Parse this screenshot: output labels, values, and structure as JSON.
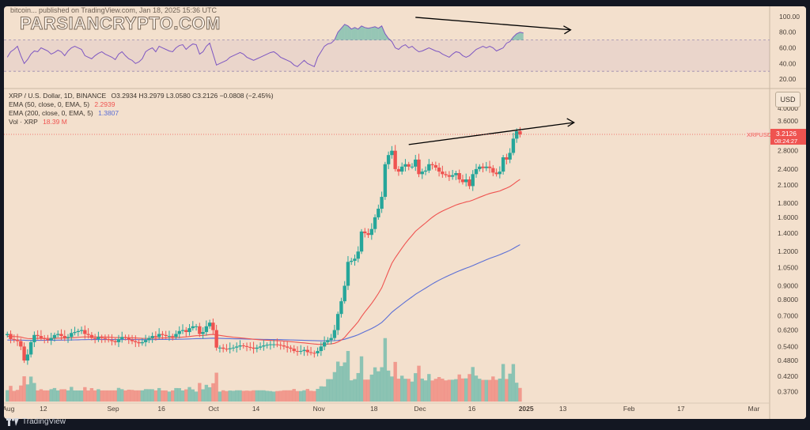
{
  "header": {
    "source_line": "bitcoin... published on TradingView.com, Jan 18, 2025 15:36 UTC",
    "watermark": "PARSIANCRYPTO.COM"
  },
  "legend": {
    "symbol_line": "XRP / U.S. Dollar, 1D, BINANCE",
    "ohlc": "O3.2934 H3.2979 L3.0580 C3.2126 −0.0808 (−2.45%)",
    "ema50_label": "EMA (50, close, 0, EMA, 5)",
    "ema50_value": "2.2939",
    "ema200_label": "EMA (200, close, 0, EMA, 5)",
    "ema200_value": "1.3807",
    "vol_label": "Vol · XRP",
    "vol_value": "18.39 M"
  },
  "price_tag": {
    "symbol": "XRPUSD",
    "value": "3.2126",
    "countdown": "08:24:27"
  },
  "currency_button": "USD",
  "footer": "TradingView",
  "colors": {
    "bg": "#f3e0cd",
    "up": "#26a69a",
    "down": "#ef5350",
    "ema50": "#ef5350",
    "ema200": "#5b6fd6",
    "rsi": "#7e57c2"
  },
  "chart_data": {
    "type": "candlestick",
    "title": "XRP / U.S. Dollar, 1D, BINANCE",
    "price_scale": "log",
    "price_ticks": [
      "4.0000",
      "3.6000",
      "3.2000",
      "2.8000",
      "2.4000",
      "2.1000",
      "1.8000",
      "1.6000",
      "1.4000",
      "1.2000",
      "1.0500",
      "0.9000",
      "0.8000",
      "0.7000",
      "0.6200",
      "0.5400",
      "0.4800",
      "0.4200",
      "0.3700"
    ],
    "price_tick_values": [
      4.0,
      3.6,
      3.2,
      2.8,
      2.4,
      2.1,
      1.8,
      1.6,
      1.4,
      1.2,
      1.05,
      0.9,
      0.8,
      0.7,
      0.62,
      0.54,
      0.48,
      0.42,
      0.37
    ],
    "price_range": [
      0.34,
      4.6
    ],
    "x_ticks": [
      "Aug",
      "12",
      "Sep",
      "16",
      "Oct",
      "14",
      "Nov",
      "18",
      "Dec",
      "16",
      "2025",
      "13",
      "Feb",
      "17",
      "Mar"
    ],
    "x_tick_days": [
      0,
      11,
      31,
      46,
      61,
      74,
      92,
      109,
      122,
      138,
      153,
      165,
      184,
      200,
      221
    ],
    "x_range_days": [
      -1,
      226
    ],
    "candles_start": "Aug 1, 2024",
    "closes": [
      0.6,
      0.575,
      0.572,
      0.565,
      0.54,
      0.48,
      0.505,
      0.56,
      0.595,
      0.59,
      0.58,
      0.575,
      0.57,
      0.58,
      0.595,
      0.6,
      0.59,
      0.58,
      0.585,
      0.605,
      0.61,
      0.615,
      0.62,
      0.6,
      0.595,
      0.58,
      0.575,
      0.585,
      0.58,
      0.575,
      0.57,
      0.565,
      0.56,
      0.575,
      0.585,
      0.58,
      0.572,
      0.565,
      0.56,
      0.555,
      0.56,
      0.57,
      0.58,
      0.59,
      0.585,
      0.6,
      0.595,
      0.59,
      0.59,
      0.585,
      0.6,
      0.615,
      0.62,
      0.61,
      0.63,
      0.64,
      0.64,
      0.6,
      0.61,
      0.64,
      0.66,
      0.62,
      0.535,
      0.535,
      0.53,
      0.528,
      0.532,
      0.535,
      0.54,
      0.545,
      0.542,
      0.538,
      0.535,
      0.53,
      0.535,
      0.54,
      0.545,
      0.548,
      0.55,
      0.55,
      0.548,
      0.545,
      0.54,
      0.535,
      0.53,
      0.52,
      0.518,
      0.52,
      0.525,
      0.515,
      0.512,
      0.51,
      0.52,
      0.54,
      0.56,
      0.57,
      0.58,
      0.62,
      0.71,
      0.79,
      0.9,
      1.1,
      1.11,
      1.13,
      1.2,
      1.42,
      1.4,
      1.38,
      1.45,
      1.6,
      1.72,
      1.9,
      2.5,
      2.7,
      2.8,
      2.4,
      2.35,
      2.45,
      2.5,
      2.45,
      2.45,
      2.6,
      2.3,
      2.35,
      2.37,
      2.5,
      2.48,
      2.43,
      2.35,
      2.3,
      2.28,
      2.25,
      2.28,
      2.32,
      2.2,
      2.15,
      2.2,
      2.08,
      2.3,
      2.4,
      2.45,
      2.42,
      2.45,
      2.42,
      2.33,
      2.3,
      2.35,
      2.65,
      2.6,
      2.75,
      3.1,
      3.3,
      3.2126
    ],
    "ema50_value": 2.2939,
    "ema200_value": 1.3807,
    "volume_label": "Vol · XRP",
    "rsi": {
      "ticks": [
        "100.00",
        "80.00",
        "60.00",
        "40.00",
        "20.00"
      ],
      "tick_values": [
        100,
        80,
        60,
        40,
        20
      ],
      "upper_band": 70,
      "lower_band": 30,
      "values": [
        48,
        55,
        58,
        62,
        50,
        40,
        45,
        52,
        56,
        55,
        60,
        58,
        56,
        52,
        54,
        57,
        55,
        50,
        56,
        60,
        62,
        60,
        58,
        50,
        48,
        46,
        50,
        53,
        55,
        52,
        50,
        48,
        45,
        52,
        55,
        50,
        46,
        44,
        40,
        42,
        46,
        55,
        58,
        60,
        55,
        62,
        60,
        58,
        56,
        55,
        60,
        63,
        64,
        58,
        62,
        65,
        64,
        52,
        55,
        62,
        66,
        52,
        38,
        40,
        42,
        44,
        48,
        50,
        52,
        54,
        52,
        48,
        46,
        44,
        46,
        48,
        50,
        52,
        54,
        55,
        52,
        48,
        46,
        44,
        42,
        38,
        36,
        40,
        44,
        40,
        38,
        36,
        48,
        55,
        62,
        65,
        66,
        70,
        80,
        85,
        90,
        88,
        84,
        86,
        84,
        88,
        86,
        85,
        86,
        87,
        85,
        88,
        78,
        72,
        68,
        60,
        58,
        62,
        64,
        60,
        62,
        58,
        55,
        56,
        58,
        60,
        58,
        56,
        55,
        52,
        50,
        48,
        52,
        55,
        54,
        50,
        48,
        50,
        54,
        58,
        60,
        62,
        60,
        62,
        60,
        56,
        58,
        60,
        66,
        68,
        74,
        78,
        80,
        79
      ]
    },
    "annotations": [
      "descending RSI trendline (bearish divergence)",
      "ascending price trendline"
    ]
  }
}
